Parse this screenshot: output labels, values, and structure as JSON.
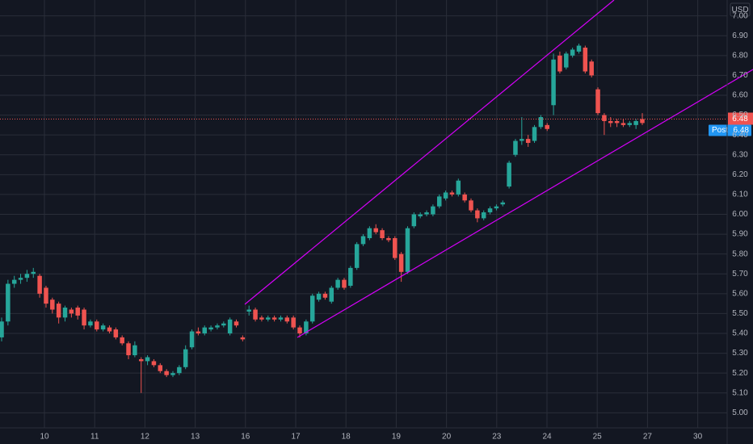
{
  "chart_data": {
    "type": "candlestick",
    "currency": "USD",
    "last_price": {
      "value": 6.48,
      "label": "6.48"
    },
    "post_label": "Post",
    "post_price": {
      "value": 6.48,
      "label": "6.48"
    },
    "up_color": "#26a69a",
    "down_color": "#ef5350",
    "grid": true,
    "ylim": [
      4.92,
      7.08
    ],
    "yticks": [
      {
        "value": 5.0,
        "label": "5.00"
      },
      {
        "value": 5.1,
        "label": "5.10"
      },
      {
        "value": 5.2,
        "label": "5.20"
      },
      {
        "value": 5.3,
        "label": "5.30"
      },
      {
        "value": 5.4,
        "label": "5.40"
      },
      {
        "value": 5.5,
        "label": "5.50"
      },
      {
        "value": 5.6,
        "label": "5.60"
      },
      {
        "value": 5.7,
        "label": "5.70"
      },
      {
        "value": 5.8,
        "label": "5.80"
      },
      {
        "value": 5.9,
        "label": "5.90"
      },
      {
        "value": 6.0,
        "label": "6.00"
      },
      {
        "value": 6.1,
        "label": "6.10"
      },
      {
        "value": 6.2,
        "label": "6.20"
      },
      {
        "value": 6.3,
        "label": "6.30"
      },
      {
        "value": 6.4,
        "label": "6.40"
      },
      {
        "value": 6.5,
        "label": "6.50"
      },
      {
        "value": 6.6,
        "label": "6.60"
      },
      {
        "value": 6.7,
        "label": "6.70"
      },
      {
        "value": 6.8,
        "label": "6.80"
      },
      {
        "value": 6.9,
        "label": "6.90"
      },
      {
        "value": 7.0,
        "label": "7.00"
      }
    ],
    "x_labels": [
      "10",
      "11",
      "12",
      "13",
      "16",
      "17",
      "18",
      "19",
      "20",
      "23",
      "24",
      "25",
      "27",
      "30"
    ],
    "candles": [
      [
        5.38,
        5.48,
        5.36,
        5.46
      ],
      [
        5.46,
        5.67,
        5.44,
        5.65
      ],
      [
        5.65,
        5.69,
        5.63,
        5.67
      ],
      [
        5.67,
        5.7,
        5.65,
        5.68
      ],
      [
        5.68,
        5.72,
        5.66,
        5.7
      ],
      [
        5.7,
        5.73,
        5.68,
        5.71
      ],
      [
        5.69,
        5.7,
        5.58,
        5.6
      ],
      [
        5.63,
        5.64,
        5.53,
        5.55
      ],
      [
        5.57,
        5.58,
        5.5,
        5.52
      ],
      [
        5.55,
        5.56,
        5.45,
        5.48
      ],
      [
        5.48,
        5.54,
        5.46,
        5.53
      ],
      [
        5.52,
        5.53,
        5.48,
        5.5
      ],
      [
        5.53,
        5.54,
        5.47,
        5.49
      ],
      [
        5.52,
        5.53,
        5.42,
        5.44
      ],
      [
        5.44,
        5.47,
        5.43,
        5.46
      ],
      [
        5.46,
        5.47,
        5.41,
        5.42
      ],
      [
        5.42,
        5.45,
        5.41,
        5.44
      ],
      [
        5.43,
        5.44,
        5.4,
        5.41
      ],
      [
        5.42,
        5.43,
        5.37,
        5.38
      ],
      [
        5.38,
        5.39,
        5.34,
        5.35
      ],
      [
        5.35,
        5.36,
        5.27,
        5.29
      ],
      [
        5.29,
        5.36,
        5.28,
        5.34
      ],
      [
        5.27,
        5.28,
        5.1,
        5.26
      ],
      [
        5.26,
        5.29,
        5.24,
        5.28
      ],
      [
        5.26,
        5.27,
        5.23,
        5.24
      ],
      [
        5.24,
        5.25,
        5.2,
        5.21
      ],
      [
        5.21,
        5.22,
        5.18,
        5.19
      ],
      [
        5.19,
        5.21,
        5.18,
        5.2
      ],
      [
        5.2,
        5.24,
        5.19,
        5.23
      ],
      [
        5.23,
        5.34,
        5.22,
        5.32
      ],
      [
        5.33,
        5.42,
        5.32,
        5.41
      ],
      [
        5.41,
        5.43,
        5.39,
        5.4
      ],
      [
        5.4,
        5.44,
        5.39,
        5.43
      ],
      [
        5.42,
        5.44,
        5.41,
        5.43
      ],
      [
        5.43,
        5.45,
        5.42,
        5.44
      ],
      [
        5.44,
        5.46,
        5.43,
        5.45
      ],
      [
        5.4,
        5.48,
        5.39,
        5.47
      ],
      [
        5.46,
        5.47,
        5.43,
        5.44
      ],
      [
        5.38,
        5.39,
        5.36,
        5.37
      ],
      [
        5.51,
        5.54,
        5.49,
        5.52
      ],
      [
        5.52,
        5.53,
        5.46,
        5.47
      ],
      [
        5.48,
        5.49,
        5.46,
        5.47
      ],
      [
        5.47,
        5.49,
        5.46,
        5.48
      ],
      [
        5.48,
        5.49,
        5.46,
        5.47
      ],
      [
        5.47,
        5.49,
        5.46,
        5.48
      ],
      [
        5.48,
        5.49,
        5.45,
        5.46
      ],
      [
        5.48,
        5.49,
        5.42,
        5.43
      ],
      [
        5.43,
        5.44,
        5.38,
        5.4
      ],
      [
        5.4,
        5.47,
        5.39,
        5.46
      ],
      [
        5.46,
        5.6,
        5.45,
        5.59
      ],
      [
        5.57,
        5.61,
        5.56,
        5.6
      ],
      [
        5.6,
        5.61,
        5.57,
        5.58
      ],
      [
        5.56,
        5.64,
        5.55,
        5.63
      ],
      [
        5.63,
        5.68,
        5.62,
        5.67
      ],
      [
        5.67,
        5.68,
        5.62,
        5.63
      ],
      [
        5.64,
        5.74,
        5.63,
        5.73
      ],
      [
        5.73,
        5.86,
        5.72,
        5.85
      ],
      [
        5.85,
        5.9,
        5.84,
        5.89
      ],
      [
        5.88,
        5.94,
        5.87,
        5.93
      ],
      [
        5.93,
        5.95,
        5.9,
        5.91
      ],
      [
        5.92,
        5.93,
        5.87,
        5.88
      ],
      [
        5.88,
        5.89,
        5.86,
        5.87
      ],
      [
        5.88,
        5.89,
        5.77,
        5.78
      ],
      [
        5.8,
        5.81,
        5.66,
        5.71
      ],
      [
        5.71,
        5.94,
        5.7,
        5.93
      ],
      [
        5.94,
        6.01,
        5.93,
        6.0
      ],
      [
        5.99,
        6.01,
        5.98,
        6.0
      ],
      [
        6.0,
        6.02,
        5.99,
        6.01
      ],
      [
        6.0,
        6.05,
        5.99,
        6.04
      ],
      [
        6.04,
        6.1,
        6.03,
        6.09
      ],
      [
        6.08,
        6.12,
        6.07,
        6.11
      ],
      [
        6.11,
        6.12,
        6.09,
        6.1
      ],
      [
        6.1,
        6.18,
        6.09,
        6.17
      ],
      [
        6.1,
        6.11,
        6.06,
        6.07
      ],
      [
        6.07,
        6.08,
        6.01,
        6.02
      ],
      [
        6.02,
        6.03,
        5.96,
        5.98
      ],
      [
        5.98,
        6.02,
        5.97,
        6.01
      ],
      [
        6.01,
        6.04,
        6.0,
        6.03
      ],
      [
        6.03,
        6.05,
        6.02,
        6.04
      ],
      [
        6.05,
        6.07,
        6.04,
        6.06
      ],
      [
        6.14,
        6.27,
        6.13,
        6.26
      ],
      [
        6.3,
        6.38,
        6.29,
        6.37
      ],
      [
        6.37,
        6.49,
        6.35,
        6.38
      ],
      [
        6.38,
        6.4,
        6.34,
        6.36
      ],
      [
        6.37,
        6.45,
        6.36,
        6.44
      ],
      [
        6.44,
        6.5,
        6.43,
        6.49
      ],
      [
        6.45,
        6.46,
        6.42,
        6.43
      ],
      [
        6.55,
        6.81,
        6.5,
        6.78
      ],
      [
        6.8,
        6.82,
        6.71,
        6.72
      ],
      [
        6.74,
        6.82,
        6.73,
        6.81
      ],
      [
        6.8,
        6.84,
        6.79,
        6.83
      ],
      [
        6.82,
        6.86,
        6.81,
        6.85
      ],
      [
        6.84,
        6.85,
        6.71,
        6.72
      ],
      [
        6.77,
        6.78,
        6.69,
        6.7
      ],
      [
        6.63,
        6.64,
        6.5,
        6.51
      ],
      [
        6.5,
        6.51,
        6.4,
        6.47
      ],
      [
        6.47,
        6.49,
        6.44,
        6.46
      ],
      [
        6.47,
        6.48,
        6.44,
        6.46
      ],
      [
        6.46,
        6.48,
        6.44,
        6.45
      ],
      [
        6.45,
        6.47,
        6.44,
        6.46
      ],
      [
        6.45,
        6.48,
        6.43,
        6.47
      ],
      [
        6.48,
        6.51,
        6.45,
        6.46
      ]
    ]
  }
}
